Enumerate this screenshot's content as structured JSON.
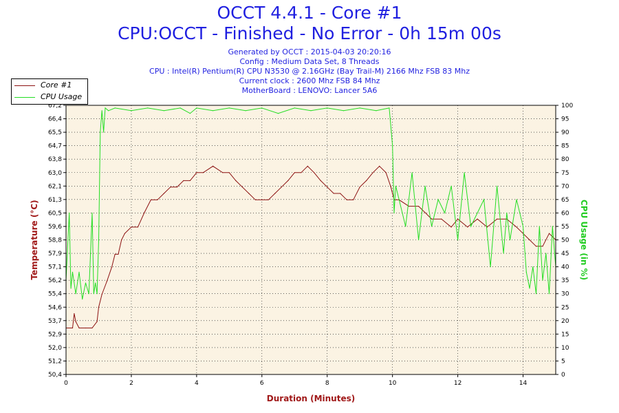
{
  "header": {
    "title": "OCCT 4.4.1 - Core #1",
    "subtitle": "CPU:OCCT - Finished - No Error - 0h 15m 00s",
    "info_lines": [
      "Generated by OCCT : 2015-04-03 20:20:16",
      "Config : Medium Data Set, 8 Threads",
      "CPU : Intel(R) Pentium(R) CPU N3530 @ 2.16GHz (Bay Trail-M) 2166 Mhz FSB 83 Mhz",
      "Current clock : 2600 Mhz FSB 84 Mhz",
      "MotherBoard : LENOVO: Lancer 5A6"
    ]
  },
  "legend": {
    "core_label": "Core #1",
    "usage_label": "CPU Usage"
  },
  "colors": {
    "background_plot": "#fbf3e3",
    "temperature": "#8b1010",
    "usage": "#22dd22",
    "title": "#1f1fe0"
  },
  "chart_data": {
    "type": "line",
    "title": "OCCT 4.4.1 - Core #1",
    "xlabel": "Duration (Minutes)",
    "ylabel_left": "Temperature (°C)",
    "ylabel_right": "CPU Usage (in %)",
    "xlim": [
      0,
      15
    ],
    "ylim_left": [
      50.4,
      67.2
    ],
    "ylim_right": [
      0,
      100
    ],
    "x_ticks": [
      "0",
      "2",
      "4",
      "6",
      "8",
      "10",
      "12",
      "14"
    ],
    "y_left_ticks": [
      "50,4",
      "51,2",
      "52,0",
      "52,9",
      "53,7",
      "54,6",
      "55,4",
      "56,2",
      "57,1",
      "57,9",
      "58,8",
      "59,6",
      "60,5",
      "61,3",
      "62,1",
      "63,0",
      "63,8",
      "64,7",
      "65,5",
      "66,4",
      "67,2"
    ],
    "y_right_ticks": [
      "0",
      "5",
      "10",
      "15",
      "20",
      "25",
      "30",
      "35",
      "40",
      "45",
      "50",
      "55",
      "60",
      "65",
      "70",
      "75",
      "80",
      "85",
      "90",
      "95",
      "100"
    ],
    "grid": true,
    "legend_position": "top-left",
    "series": [
      {
        "name": "Core #1",
        "color": "#8b1010",
        "x": [
          0.0,
          0.2,
          0.25,
          0.3,
          0.4,
          0.6,
          0.8,
          0.95,
          1.0,
          1.1,
          1.25,
          1.4,
          1.5,
          1.6,
          1.7,
          1.8,
          2.0,
          2.2,
          2.4,
          2.6,
          2.8,
          3.0,
          3.2,
          3.4,
          3.6,
          3.8,
          4.0,
          4.2,
          4.5,
          4.8,
          5.0,
          5.2,
          5.4,
          5.6,
          5.8,
          6.0,
          6.2,
          6.4,
          6.6,
          6.8,
          7.0,
          7.2,
          7.4,
          7.6,
          7.8,
          8.0,
          8.2,
          8.4,
          8.6,
          8.8,
          9.0,
          9.2,
          9.4,
          9.6,
          9.8,
          9.95,
          10.05,
          10.2,
          10.5,
          10.8,
          11.0,
          11.2,
          11.5,
          11.8,
          12.0,
          12.3,
          12.6,
          12.9,
          13.2,
          13.5,
          13.8,
          14.0,
          14.2,
          14.4,
          14.6,
          14.8,
          15.0
        ],
        "values": [
          53.3,
          53.3,
          54.2,
          53.7,
          53.3,
          53.3,
          53.3,
          53.7,
          54.6,
          55.4,
          56.2,
          57.1,
          57.9,
          57.9,
          58.8,
          59.2,
          59.6,
          59.6,
          60.5,
          61.3,
          61.3,
          61.7,
          62.1,
          62.1,
          62.5,
          62.5,
          63.0,
          63.0,
          63.4,
          63.0,
          63.0,
          62.5,
          62.1,
          61.7,
          61.3,
          61.3,
          61.3,
          61.7,
          62.1,
          62.5,
          63.0,
          63.0,
          63.4,
          63.0,
          62.5,
          62.1,
          61.7,
          61.7,
          61.3,
          61.3,
          62.1,
          62.5,
          63.0,
          63.4,
          63.0,
          62.1,
          61.3,
          61.3,
          60.9,
          60.9,
          60.5,
          60.1,
          60.1,
          59.6,
          60.1,
          59.6,
          60.1,
          59.6,
          60.1,
          60.1,
          59.6,
          59.2,
          58.8,
          58.4,
          58.4,
          59.2,
          58.8
        ]
      },
      {
        "name": "CPU Usage",
        "color": "#22dd22",
        "x": [
          0.0,
          0.1,
          0.15,
          0.2,
          0.3,
          0.4,
          0.5,
          0.6,
          0.7,
          0.8,
          0.85,
          0.9,
          0.95,
          1.0,
          1.05,
          1.1,
          1.15,
          1.2,
          1.3,
          1.5,
          2.0,
          2.5,
          3.0,
          3.5,
          3.8,
          4.0,
          4.5,
          5.0,
          5.5,
          6.0,
          6.5,
          7.0,
          7.5,
          8.0,
          8.5,
          9.0,
          9.5,
          9.9,
          10.0,
          10.05,
          10.1,
          10.2,
          10.4,
          10.6,
          10.8,
          11.0,
          11.2,
          11.4,
          11.6,
          11.8,
          12.0,
          12.2,
          12.4,
          12.6,
          12.8,
          13.0,
          13.2,
          13.4,
          13.5,
          13.6,
          13.8,
          14.0,
          14.1,
          14.2,
          14.3,
          14.4,
          14.5,
          14.6,
          14.7,
          14.8,
          14.9,
          15.0
        ],
        "values": [
          35,
          60,
          32,
          38,
          30,
          38,
          28,
          34,
          30,
          60,
          30,
          34,
          30,
          50,
          90,
          98,
          90,
          99,
          98,
          99,
          98,
          99,
          98,
          99,
          97,
          99,
          98,
          99,
          98,
          99,
          97,
          99,
          98,
          99,
          98,
          99,
          98,
          99,
          85,
          60,
          70,
          65,
          55,
          75,
          50,
          70,
          55,
          65,
          60,
          70,
          50,
          75,
          55,
          60,
          65,
          40,
          70,
          45,
          60,
          50,
          65,
          55,
          38,
          32,
          40,
          30,
          55,
          35,
          45,
          30,
          55,
          40
        ]
      }
    ]
  }
}
